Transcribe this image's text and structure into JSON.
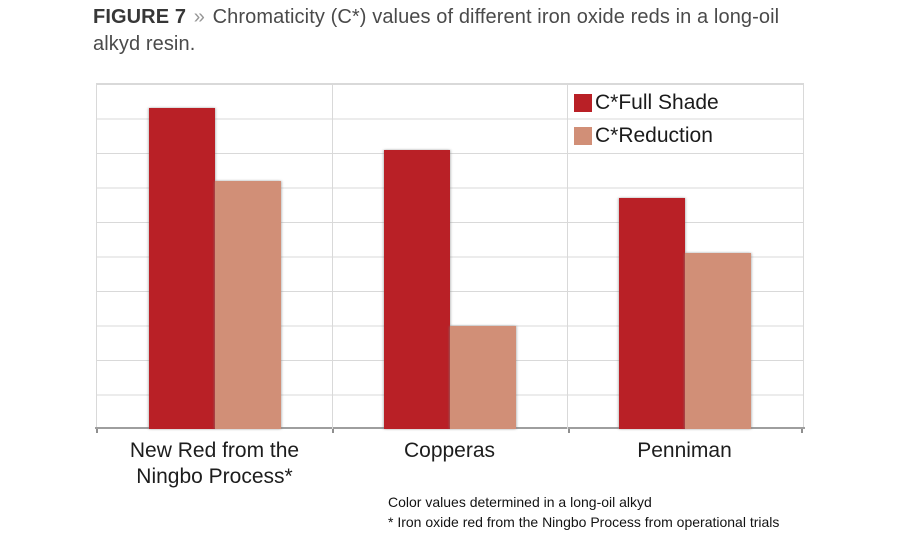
{
  "figure": {
    "label": "FIGURE 7",
    "separator": "»",
    "caption": "Chromaticity (C*) values of different iron oxide reds in a long-oil alkyd resin."
  },
  "chart_data": {
    "type": "bar",
    "title": "Chromaticity (C*) values of different iron oxide reds in a long-oil alkyd resin",
    "categories": [
      "New Red from the Ningbo Process*",
      "Copperas",
      "Penniman"
    ],
    "series": [
      {
        "name": "C*Full Shade",
        "color": "#b92026",
        "values": [
          9.3,
          8.1,
          6.7
        ]
      },
      {
        "name": "C*Reduction",
        "color": "#d18f77",
        "values": [
          7.2,
          3.0,
          5.1
        ]
      }
    ],
    "xlabel": "",
    "ylabel": "",
    "ylim": [
      0,
      10
    ],
    "grid_interval": 1,
    "y_tick_labels_shown": false,
    "grid": "horizontal lines plus vertical category separators",
    "legend_position": "top-right inside plot"
  },
  "colors": {
    "full_shade": "#b92026",
    "reduction": "#d18f77",
    "gridline": "#d9d9d9",
    "axis": "#9e9e9e"
  },
  "footnotes": {
    "line1": "Color values determined in a long-oil alkyd",
    "line2": "* Iron oxide red from the Ningbo Process from operational trials"
  }
}
